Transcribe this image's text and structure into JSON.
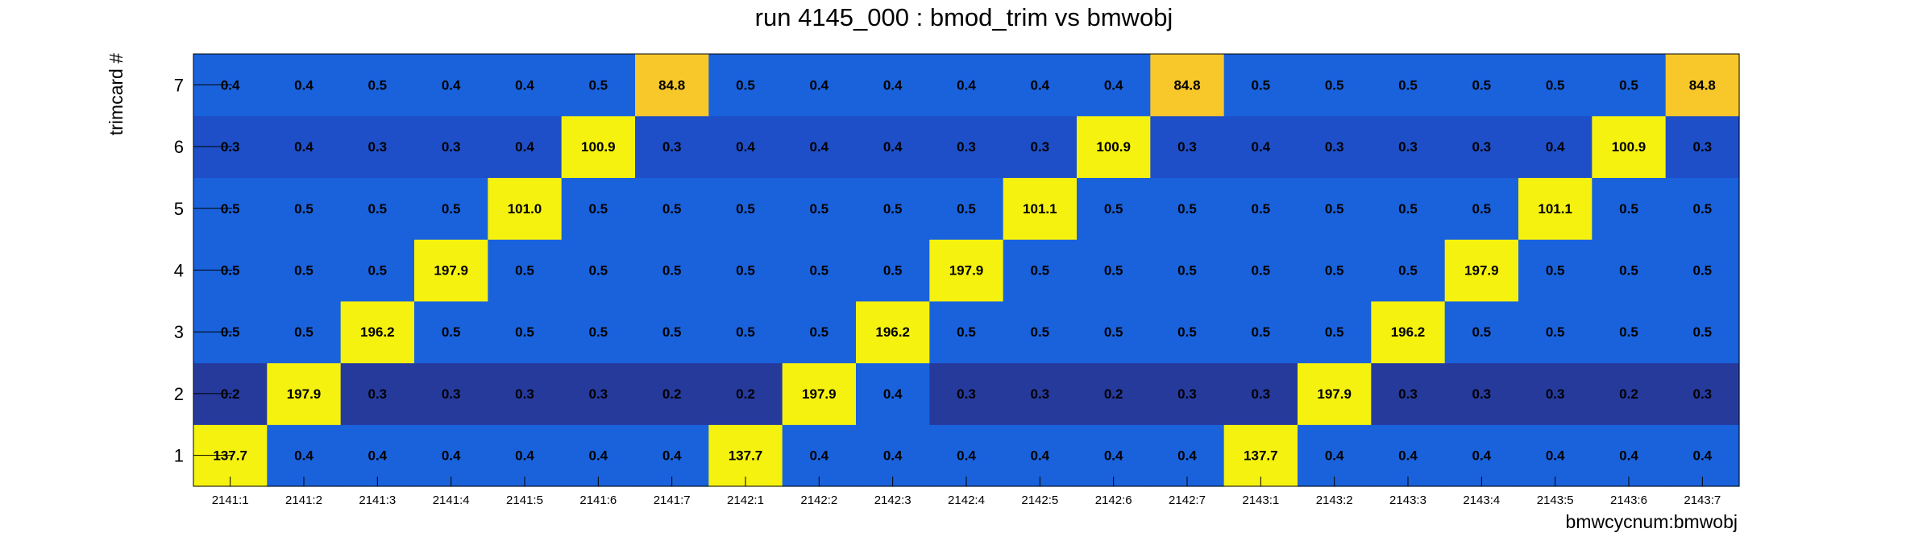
{
  "chart_data": {
    "type": "heatmap",
    "title": "run 4145_000 : bmod_trim vs bmwobj",
    "xlabel": "bmwcycnum:bmwobj",
    "ylabel": "trimcard #",
    "x_categories": [
      "2141:1",
      "2141:2",
      "2141:3",
      "2141:4",
      "2141:5",
      "2141:6",
      "2141:7",
      "2142:1",
      "2142:2",
      "2142:3",
      "2142:4",
      "2142:5",
      "2142:6",
      "2142:7",
      "2143:1",
      "2143:2",
      "2143:3",
      "2143:4",
      "2143:5",
      "2143:6",
      "2143:7"
    ],
    "y_categories": [
      "1",
      "2",
      "3",
      "4",
      "5",
      "6",
      "7"
    ],
    "values": [
      [
        137.7,
        0.4,
        0.4,
        0.4,
        0.4,
        0.4,
        0.4,
        137.7,
        0.4,
        0.4,
        0.4,
        0.4,
        0.4,
        0.4,
        137.7,
        0.4,
        0.4,
        0.4,
        0.4,
        0.4,
        0.4
      ],
      [
        0.2,
        197.9,
        0.3,
        0.3,
        0.3,
        0.3,
        0.2,
        0.2,
        197.9,
        0.4,
        0.3,
        0.3,
        0.2,
        0.3,
        0.3,
        197.9,
        0.3,
        0.3,
        0.3,
        0.2,
        0.3
      ],
      [
        0.5,
        0.5,
        196.2,
        0.5,
        0.5,
        0.5,
        0.5,
        0.5,
        0.5,
        196.2,
        0.5,
        0.5,
        0.5,
        0.5,
        0.5,
        0.5,
        196.2,
        0.5,
        0.5,
        0.5,
        0.5
      ],
      [
        0.5,
        0.5,
        0.5,
        197.9,
        0.5,
        0.5,
        0.5,
        0.5,
        0.5,
        0.5,
        197.9,
        0.5,
        0.5,
        0.5,
        0.5,
        0.5,
        0.5,
        197.9,
        0.5,
        0.5,
        0.5
      ],
      [
        0.5,
        0.5,
        0.5,
        0.5,
        101.0,
        0.5,
        0.5,
        0.5,
        0.5,
        0.5,
        0.5,
        101.1,
        0.5,
        0.5,
        0.5,
        0.5,
        0.5,
        0.5,
        101.1,
        0.5,
        0.5
      ],
      [
        0.3,
        0.4,
        0.3,
        0.3,
        0.4,
        100.9,
        0.3,
        0.4,
        0.4,
        0.4,
        0.3,
        0.3,
        100.9,
        0.3,
        0.4,
        0.3,
        0.3,
        0.3,
        0.4,
        100.9,
        0.3
      ],
      [
        0.4,
        0.4,
        0.5,
        0.4,
        0.4,
        0.5,
        84.8,
        0.5,
        0.4,
        0.4,
        0.4,
        0.4,
        0.4,
        84.8,
        0.5,
        0.5,
        0.5,
        0.5,
        0.5,
        0.5,
        84.8
      ]
    ],
    "grid": false,
    "colors": {
      "low_dark": "#263a9c",
      "low": "#1e4fc8",
      "mid": "#1a62dc",
      "high_orange": "#f8c82a",
      "high_yellow": "#f6f20f"
    }
  }
}
